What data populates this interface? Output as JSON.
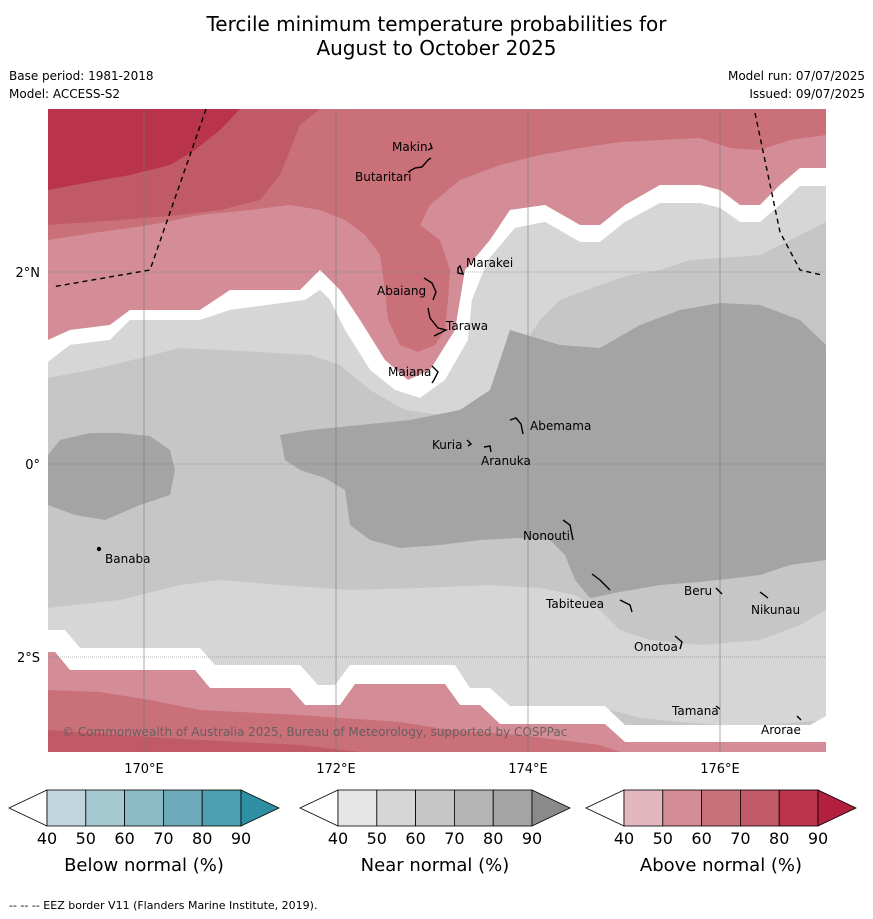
{
  "title_line1": "Tercile minimum temperature probabilities for",
  "title_line2": "August to October 2025",
  "base_period": "Base period: 1981-2018",
  "model": "Model: ACCESS-S2",
  "model_run": "Model run: 07/07/2025",
  "issued": "Issued: 09/07/2025",
  "copyright": "© Commonwealth of Australia 2025, Bureau of Meteorology, supported by COSPPac",
  "footnote": "-- -- -- EEZ border V11 (Flanders Marine Institute, 2019).",
  "lon_labels": [
    "170°E",
    "172°E",
    "174°E",
    "176°E"
  ],
  "lat_labels": [
    "2°N",
    "0°",
    "2°S"
  ],
  "places": [
    {
      "name": "Makin"
    },
    {
      "name": "Butaritari"
    },
    {
      "name": "Marakei"
    },
    {
      "name": "Abaiang"
    },
    {
      "name": "Tarawa"
    },
    {
      "name": "Maiana"
    },
    {
      "name": "Abemama"
    },
    {
      "name": "Kuria"
    },
    {
      "name": "Aranuka"
    },
    {
      "name": "Nonouti"
    },
    {
      "name": "Banaba"
    },
    {
      "name": "Beru"
    },
    {
      "name": "Tabiteuea"
    },
    {
      "name": "Nikunau"
    },
    {
      "name": "Onotoa"
    },
    {
      "name": "Tamana"
    },
    {
      "name": "Arorae"
    }
  ],
  "legends": [
    {
      "label": "Below normal (%)",
      "ticks": [
        "40",
        "50",
        "60",
        "70",
        "80",
        "90"
      ],
      "colors": [
        "#c0d6dc",
        "#a6c8d0",
        "#8bb9c5",
        "#6eaab9",
        "#4da0b0",
        "#2e8fa3"
      ]
    },
    {
      "label": "Near normal (%)",
      "ticks": [
        "40",
        "50",
        "60",
        "70",
        "80",
        "90"
      ],
      "colors": [
        "#e6e6e6",
        "#d6d6d6",
        "#c6c6c6",
        "#b4b4b4",
        "#a4a4a4",
        "#8a8a8a"
      ]
    },
    {
      "label": "Above normal (%)",
      "ticks": [
        "40",
        "50",
        "60",
        "70",
        "80",
        "90"
      ],
      "colors": [
        "#e2b8be",
        "#d48d96",
        "#c97079",
        "#c05a66",
        "#b9334a",
        "#b31f3e"
      ]
    }
  ]
}
